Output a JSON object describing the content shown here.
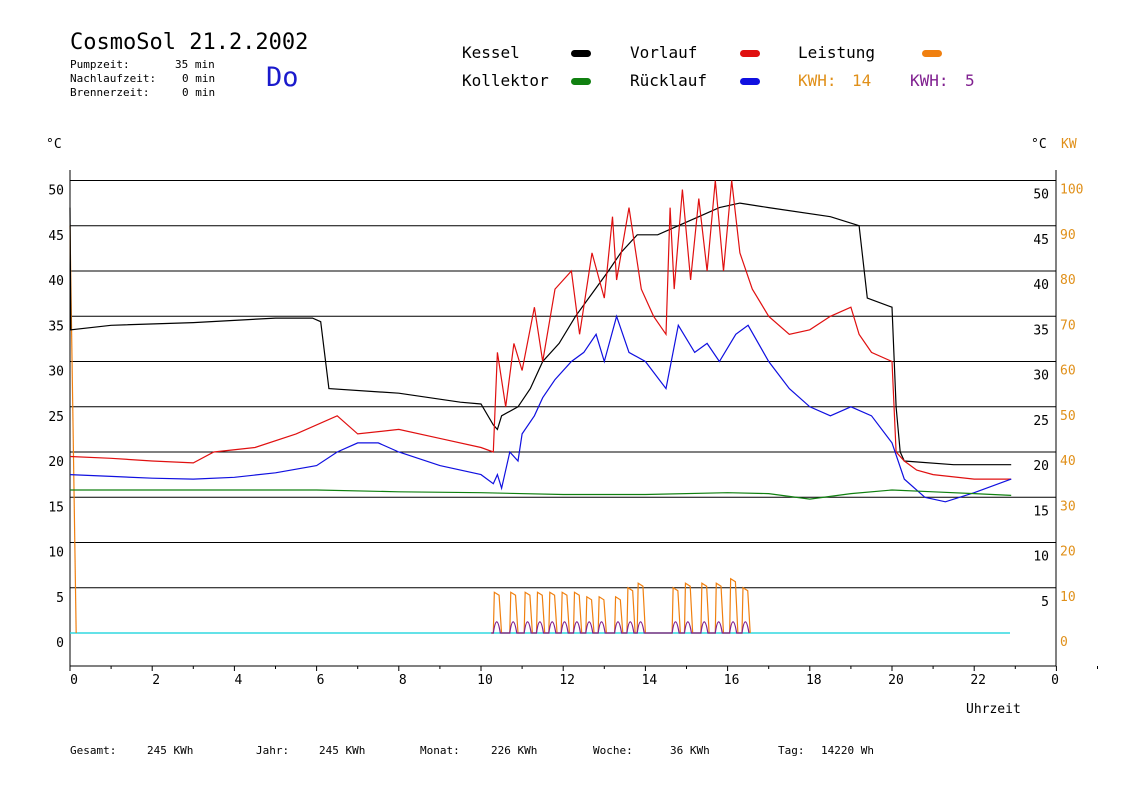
{
  "header": {
    "title": "CosmoSol 21.2.2002",
    "day": "Do",
    "stats": [
      {
        "label": "Pumpzeit:",
        "value": "35 min"
      },
      {
        "label": "Nachlaufzeit:",
        "value": "0 min"
      },
      {
        "label": "Brennerzeit:",
        "value": "0 min"
      }
    ]
  },
  "legend": {
    "items": [
      {
        "name": "Kessel",
        "color": "#000000"
      },
      {
        "name": "Vorlauf",
        "color": "#e01010"
      },
      {
        "name": "Leistung",
        "color": "#f08010"
      },
      {
        "name": "Kollektor",
        "color": "#108010"
      },
      {
        "name": "Rücklauf",
        "color": "#1010e0"
      }
    ],
    "kwh": [
      {
        "label": "KWH:",
        "value": "14",
        "color": "#e0901a"
      },
      {
        "label": "KWH:",
        "value": "5",
        "color": "#802090"
      }
    ]
  },
  "axes": {
    "left_unit": "°C",
    "right_unit_c": "°C",
    "right_unit_kw": "KW",
    "x_label": "Uhrzeit"
  },
  "footer": [
    {
      "label": "Gesamt:",
      "value": "245 KWh"
    },
    {
      "label": "Jahr:",
      "value": "245 KWh"
    },
    {
      "label": "Monat:",
      "value": "226 KWh"
    },
    {
      "label": "Woche:",
      "value": "36 KWh"
    },
    {
      "label": "Tag:",
      "value": "14220 Wh"
    }
  ],
  "chart_data": {
    "type": "line",
    "xlim": [
      0,
      24
    ],
    "ylim": [
      -3,
      52
    ],
    "y2lim_kw": [
      0,
      100
    ],
    "grid": true,
    "x_ticks": [
      "0",
      "2",
      "4",
      "6",
      "8",
      "10",
      "12",
      "14",
      "16",
      "18",
      "20",
      "22",
      "0"
    ],
    "y_ticks_left": [
      "0",
      "5",
      "10",
      "15",
      "20",
      "25",
      "30",
      "35",
      "40",
      "45",
      "50"
    ],
    "y_ticks_right_c": [
      "5",
      "10",
      "15",
      "20",
      "25",
      "30",
      "35",
      "40",
      "45",
      "50"
    ],
    "y_ticks_right_kw": [
      "0",
      "10",
      "20",
      "30",
      "40",
      "50",
      "60",
      "70",
      "80",
      "90",
      "100"
    ],
    "series": [
      {
        "name": "Kessel",
        "color": "#000000",
        "x": [
          0,
          0.02,
          1,
          3,
          5,
          5.9,
          6.1,
          6.3,
          8,
          9.5,
          10,
          10.3,
          10.4,
          10.5,
          10.9,
          11.2,
          11.5,
          11.9,
          12.3,
          12.7,
          13.1,
          13.4,
          13.8,
          14.3,
          14.8,
          15.3,
          15.8,
          16.3,
          17,
          18.5,
          19.2,
          19.4,
          20,
          20.1,
          20.2,
          20.3,
          21.5,
          22.9
        ],
        "y": [
          47,
          33.5,
          34,
          34.3,
          34.8,
          34.8,
          34.4,
          27,
          26.5,
          25.5,
          25.3,
          23,
          22.5,
          24,
          25,
          27,
          30,
          32,
          35,
          37.5,
          40,
          42,
          44,
          44,
          45,
          46,
          47,
          47.5,
          47,
          46,
          45,
          37,
          36,
          25,
          20,
          19,
          18.6,
          18.6
        ]
      },
      {
        "name": "Vorlauf",
        "color": "#e01010",
        "x": [
          0,
          1,
          2,
          3,
          3.5,
          4.5,
          5.5,
          6.5,
          7,
          8,
          9,
          10,
          10.3,
          10.4,
          10.6,
          10.8,
          11,
          11.3,
          11.5,
          11.8,
          12.2,
          12.4,
          12.7,
          13,
          13.2,
          13.3,
          13.6,
          13.9,
          14.2,
          14.5,
          14.6,
          14.7,
          14.9,
          15.1,
          15.3,
          15.5,
          15.7,
          15.9,
          16.1,
          16.3,
          16.6,
          17,
          17.5,
          18,
          18.5,
          19,
          19.2,
          19.5,
          20,
          20.1,
          20.3,
          20.6,
          21,
          22,
          22.9
        ],
        "y": [
          19.5,
          19.3,
          19,
          18.8,
          20,
          20.5,
          22,
          24,
          22,
          22.5,
          21.5,
          20.5,
          20,
          31,
          25,
          32,
          29,
          36,
          30,
          38,
          40,
          33,
          42,
          37,
          46,
          39,
          47,
          38,
          35,
          33,
          47,
          38,
          49,
          39,
          48,
          40,
          50,
          40,
          50,
          42,
          38,
          35,
          33,
          33.5,
          35,
          36,
          33,
          31,
          30,
          20,
          19,
          18,
          17.5,
          17,
          17
        ]
      },
      {
        "name": "Rücklauf",
        "color": "#1010e0",
        "x": [
          0,
          1,
          2,
          3,
          4,
          5,
          6,
          6.5,
          7,
          7.5,
          8,
          9,
          10,
          10.3,
          10.4,
          10.5,
          10.7,
          10.9,
          11,
          11.3,
          11.5,
          11.8,
          12.2,
          12.5,
          12.8,
          13,
          13.3,
          13.6,
          14,
          14.5,
          14.8,
          15.2,
          15.5,
          15.8,
          16.2,
          16.5,
          17,
          17.5,
          18,
          18.5,
          19,
          19.5,
          20,
          20.3,
          20.8,
          21.3,
          22,
          22.9
        ],
        "y": [
          17.5,
          17.3,
          17.1,
          17,
          17.2,
          17.7,
          18.5,
          20,
          21,
          21,
          20,
          18.5,
          17.5,
          16.5,
          17.5,
          16,
          20,
          19,
          22,
          24,
          26,
          28,
          30,
          31,
          33,
          30,
          35,
          31,
          30,
          27,
          34,
          31,
          32,
          30,
          33,
          34,
          30,
          27,
          25,
          24,
          25,
          24,
          21,
          17,
          15,
          14.5,
          15.5,
          17
        ]
      },
      {
        "name": "Kollektor",
        "color": "#108010",
        "x": [
          0,
          4,
          6,
          8,
          10,
          12,
          14,
          16,
          17,
          18,
          19,
          20,
          21,
          22,
          22.9
        ],
        "y": [
          15.8,
          15.8,
          15.8,
          15.6,
          15.5,
          15.3,
          15.3,
          15.5,
          15.4,
          14.8,
          15.4,
          15.8,
          15.6,
          15.4,
          15.2
        ]
      }
    ]
  }
}
